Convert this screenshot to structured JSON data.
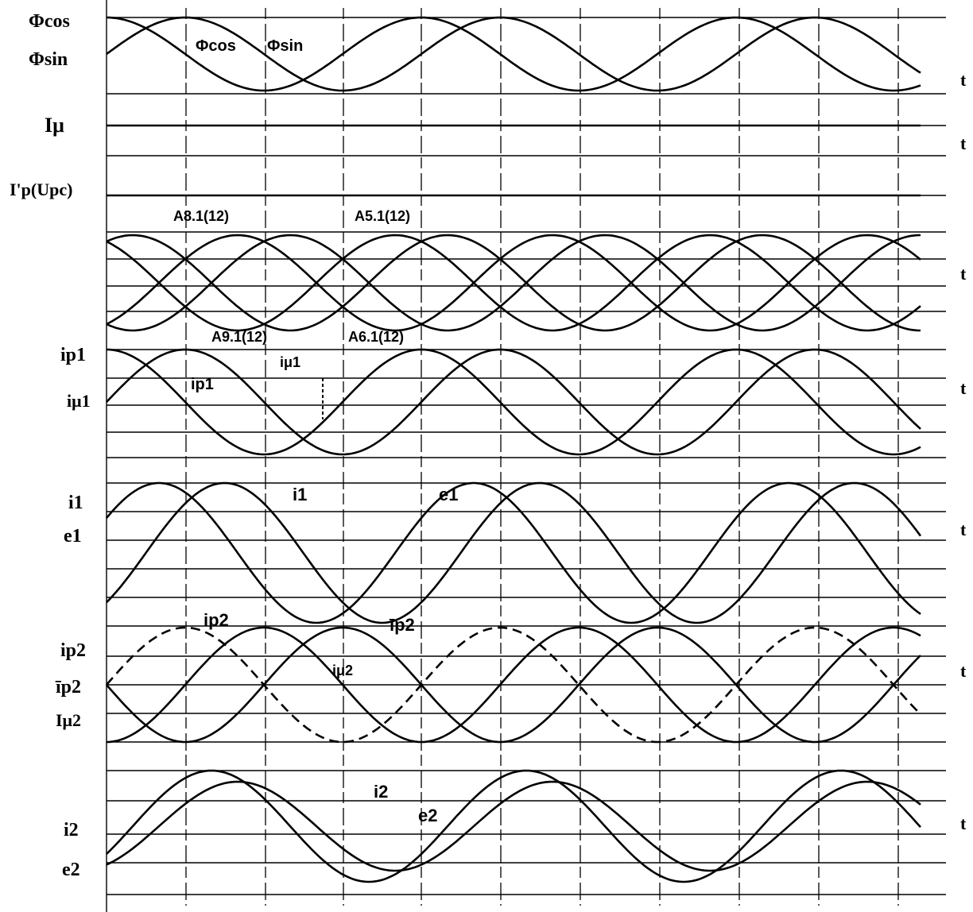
{
  "chart_data": {
    "type": "line",
    "title": "",
    "xlabel": "t",
    "panels": [
      {
        "name": "flux",
        "labels": [
          "Φcos",
          "Φsin"
        ],
        "series": [
          {
            "name": "Φcos",
            "label": "Φcos",
            "amplitude": 1,
            "phase_deg": 90,
            "style": "solid"
          },
          {
            "name": "Φsin",
            "label": "Φsin",
            "amplitude": 1,
            "phase_deg": 0,
            "style": "solid"
          }
        ]
      },
      {
        "name": "magnetizing-current",
        "labels": [
          "Iμ"
        ],
        "series": [
          {
            "name": "Iμ",
            "amplitude": 0,
            "phase_deg": 0,
            "style": "solid"
          }
        ]
      },
      {
        "name": "rotor-current",
        "labels": [
          "I'p(Upc)"
        ],
        "series": [
          {
            "name": "I'p(Upc)",
            "amplitude": 0,
            "phase_deg": 0,
            "style": "solid"
          }
        ]
      },
      {
        "name": "switch-states",
        "labels": [],
        "annotations": [
          "A8.1(12)",
          "A5.1(12)",
          "A9.1(12)",
          "A6.1(12)"
        ],
        "series": [
          {
            "name": "A8.1(12)",
            "amplitude": 1,
            "phase_deg": 120,
            "style": "solid"
          },
          {
            "name": "A5.1(12)",
            "amplitude": 1,
            "phase_deg": 60,
            "style": "solid"
          },
          {
            "name": "A9.1(12)",
            "amplitude": 1,
            "phase_deg": -60,
            "style": "solid"
          },
          {
            "name": "A6.1(12)",
            "amplitude": 1,
            "phase_deg": -120,
            "style": "solid"
          }
        ]
      },
      {
        "name": "ip1-imu1",
        "labels": [
          "ip1",
          "iμ1"
        ],
        "annotations": [
          "ip1",
          "iμ1"
        ],
        "series": [
          {
            "name": "ip1",
            "amplitude": 1,
            "phase_deg": 90,
            "style": "solid"
          },
          {
            "name": "iμ1",
            "amplitude": 1,
            "phase_deg": 0,
            "style": "solid"
          }
        ]
      },
      {
        "name": "i1-e1",
        "labels": [
          "i1",
          "e1"
        ],
        "annotations": [
          "i1",
          "e1"
        ],
        "series": [
          {
            "name": "i1",
            "amplitude": 1,
            "phase_deg": -45,
            "style": "solid"
          },
          {
            "name": "e1",
            "amplitude": 1,
            "phase_deg": 30,
            "style": "solid"
          }
        ]
      },
      {
        "name": "ip2-imu2",
        "labels": [
          "ip2",
          "īp2",
          "Iμ2"
        ],
        "annotations": [
          "ip2",
          "īp2",
          "iμ2"
        ],
        "series": [
          {
            "name": "ip2",
            "amplitude": 1,
            "phase_deg": 0,
            "style": "dashed"
          },
          {
            "name": "īp2",
            "amplitude": 1,
            "phase_deg": 180,
            "style": "solid"
          },
          {
            "name": "iμ2",
            "amplitude": 1,
            "phase_deg": -90,
            "style": "solid"
          }
        ]
      },
      {
        "name": "i2-e2",
        "labels": [
          "i2",
          "e2"
        ],
        "annotations": [
          "i2",
          "e2"
        ],
        "series": [
          {
            "name": "i2",
            "amplitude": 1,
            "phase_deg": -30,
            "style": "solid"
          },
          {
            "name": "e2",
            "amplitude": 0.8,
            "phase_deg": -60,
            "style": "solid"
          }
        ]
      }
    ],
    "grid": true
  }
}
